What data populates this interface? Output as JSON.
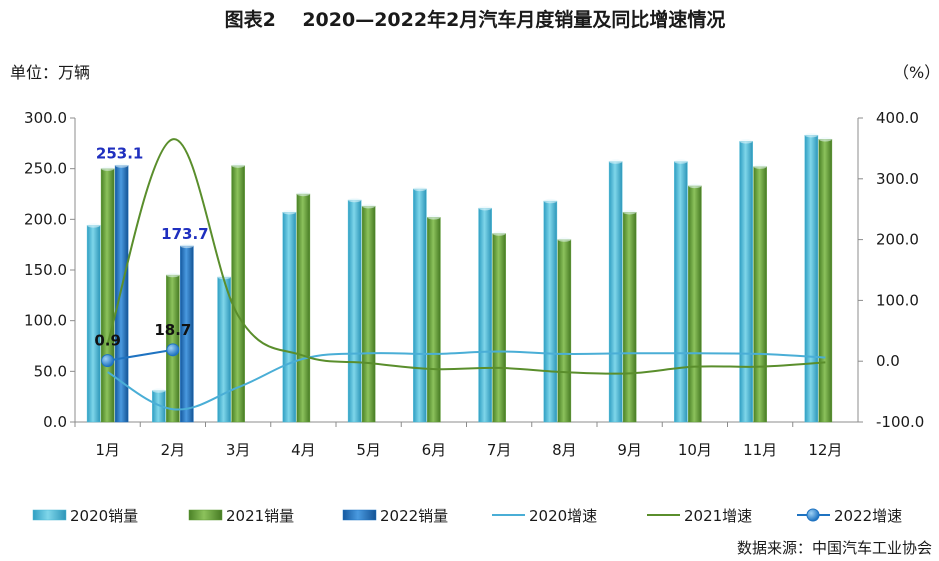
{
  "title": "图表2    2020—2022年2月汽车月度销量及同比增速情况",
  "unit_left": "单位：万辆",
  "unit_right": "（%）",
  "source": "数据来源：中国汽车工业协会",
  "chart_data": {
    "type": "bar",
    "categories": [
      "1月",
      "2月",
      "3月",
      "4月",
      "5月",
      "6月",
      "7月",
      "8月",
      "9月",
      "10月",
      "11月",
      "12月"
    ],
    "ylim": [
      0,
      300
    ],
    "y2lim": [
      -100,
      400
    ],
    "yticks": [
      "0.0",
      "50.0",
      "100.0",
      "150.0",
      "200.0",
      "250.0",
      "300.0"
    ],
    "y2ticks": [
      "-100.0",
      "0.0",
      "100.0",
      "200.0",
      "300.0",
      "400.0"
    ],
    "series": [
      {
        "name": "2020销量",
        "kind": "bar",
        "color": "#4bb8d4",
        "values": [
          194,
          31,
          143,
          207,
          219,
          230,
          211,
          218,
          257,
          257,
          277,
          283
        ]
      },
      {
        "name": "2021销量",
        "kind": "bar",
        "color": "#5e9a35",
        "values": [
          250,
          145,
          253,
          225,
          213,
          202,
          186,
          180,
          207,
          233,
          252,
          279
        ]
      },
      {
        "name": "2022销量",
        "kind": "bar",
        "color": "#1f73c1",
        "values": [
          253.1,
          173.7,
          null,
          null,
          null,
          null,
          null,
          null,
          null,
          null,
          null,
          null
        ]
      },
      {
        "name": "2020增速",
        "kind": "line",
        "axis": "right",
        "color": "#4aaed6",
        "values": [
          -18,
          -79,
          -43,
          4,
          13,
          12,
          16,
          12,
          13,
          13,
          12,
          6
        ]
      },
      {
        "name": "2021增速",
        "kind": "line",
        "axis": "right",
        "color": "#5a8e2c",
        "values": [
          29,
          365,
          75,
          9,
          -3,
          -13,
          -11,
          -18,
          -20,
          -9,
          -9,
          -2
        ]
      },
      {
        "name": "2022增速",
        "kind": "line-marker",
        "axis": "right",
        "color": "#1f73c1",
        "values": [
          0.9,
          18.7,
          null,
          null,
          null,
          null,
          null,
          null,
          null,
          null,
          null,
          null
        ]
      }
    ],
    "bar_labels": [
      "253.1",
      "173.7"
    ],
    "point_labels": [
      "0.9",
      "18.7"
    ]
  }
}
